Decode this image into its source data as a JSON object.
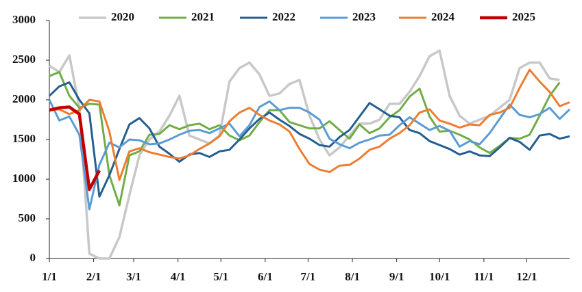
{
  "chart_data": {
    "type": "line",
    "x": [
      0,
      7,
      14,
      21,
      28,
      35,
      42,
      49,
      56,
      63,
      70,
      77,
      84,
      91,
      98,
      105,
      112,
      119,
      126,
      133,
      140,
      147,
      154,
      161,
      168,
      175,
      182,
      189,
      196,
      203,
      210,
      217,
      224,
      231,
      238,
      245,
      252,
      259,
      266,
      273,
      280,
      287,
      294,
      301,
      308,
      315,
      322,
      329,
      336,
      343,
      350,
      357,
      364
    ],
    "xlim": [
      0,
      364
    ],
    "xticks": [
      {
        "value": 0,
        "label": "1/1"
      },
      {
        "value": 31,
        "label": "2/1"
      },
      {
        "value": 59,
        "label": "3/1"
      },
      {
        "value": 90,
        "label": "4/1"
      },
      {
        "value": 120,
        "label": "5/1"
      },
      {
        "value": 151,
        "label": "6/1"
      },
      {
        "value": 181,
        "label": "7/1"
      },
      {
        "value": 212,
        "label": "8/1"
      },
      {
        "value": 243,
        "label": "9/1"
      },
      {
        "value": 273,
        "label": "10/1"
      },
      {
        "value": 304,
        "label": "11/1"
      },
      {
        "value": 334,
        "label": "12/1"
      }
    ],
    "ylim": [
      0,
      3000
    ],
    "yticks": [
      0,
      500,
      1000,
      1500,
      2000,
      2500,
      3000
    ],
    "legend": "top",
    "series": [
      {
        "name": "2020",
        "color": "#c8c8c8",
        "width": 3.5,
        "values": [
          2430,
          2350,
          2560,
          1900,
          60,
          0,
          0,
          270,
          800,
          1300,
          1500,
          1600,
          1800,
          2050,
          1550,
          1500,
          1450,
          1550,
          2230,
          2400,
          2470,
          2320,
          2050,
          2080,
          2200,
          2250,
          1800,
          1500,
          1300,
          1400,
          1550,
          1700,
          1700,
          1750,
          1950,
          1950,
          2100,
          2300,
          2550,
          2620,
          2050,
          1800,
          1700,
          1750,
          1800,
          1900,
          2000,
          2400,
          2470,
          2470,
          2270,
          2250,
          null
        ]
      },
      {
        "name": "2021",
        "color": "#70ad47",
        "width": 3,
        "values": [
          2300,
          2350,
          2050,
          1900,
          1950,
          1940,
          1050,
          670,
          1300,
          1350,
          1560,
          1570,
          1680,
          1630,
          1680,
          1700,
          1630,
          1680,
          1550,
          1490,
          1550,
          1720,
          1870,
          1870,
          1720,
          1680,
          1640,
          1640,
          1730,
          1620,
          1510,
          1690,
          1580,
          1640,
          1780,
          1870,
          2040,
          2140,
          1790,
          1600,
          1610,
          1560,
          1500,
          1400,
          1330,
          1420,
          1520,
          1510,
          1560,
          1800,
          2050,
          2220,
          null
        ]
      },
      {
        "name": "2022",
        "color": "#255e91",
        "width": 3,
        "values": [
          2050,
          2170,
          2220,
          2000,
          1830,
          780,
          1050,
          1380,
          1690,
          1770,
          1640,
          1410,
          1320,
          1220,
          1310,
          1330,
          1280,
          1350,
          1370,
          1500,
          1640,
          1760,
          1840,
          1750,
          1670,
          1570,
          1510,
          1430,
          1410,
          1530,
          1620,
          1790,
          1960,
          1880,
          1800,
          1780,
          1620,
          1580,
          1480,
          1430,
          1380,
          1310,
          1350,
          1300,
          1290,
          1400,
          1520,
          1470,
          1370,
          1550,
          1570,
          1510,
          1540
        ]
      },
      {
        "name": "2023",
        "color": "#5b9bd5",
        "width": 3,
        "values": [
          2000,
          1740,
          1790,
          1560,
          620,
          1180,
          1460,
          1400,
          1500,
          1490,
          1440,
          1450,
          1500,
          1560,
          1610,
          1620,
          1580,
          1640,
          1700,
          1540,
          1680,
          1910,
          1980,
          1870,
          1900,
          1900,
          1840,
          1750,
          1510,
          1440,
          1390,
          1460,
          1500,
          1550,
          1560,
          1680,
          1780,
          1700,
          1620,
          1670,
          1610,
          1410,
          1480,
          1440,
          1580,
          1760,
          1940,
          1810,
          1780,
          1820,
          1900,
          1760,
          1880
        ]
      },
      {
        "name": "2024",
        "color": "#ed7d31",
        "width": 3,
        "values": [
          1870,
          1880,
          1820,
          1870,
          2000,
          1980,
          1600,
          990,
          1350,
          1390,
          1340,
          1310,
          1280,
          1260,
          1300,
          1380,
          1450,
          1540,
          1730,
          1840,
          1900,
          1810,
          1740,
          1690,
          1600,
          1380,
          1190,
          1120,
          1090,
          1170,
          1180,
          1260,
          1370,
          1410,
          1510,
          1580,
          1680,
          1840,
          1880,
          1740,
          1700,
          1650,
          1690,
          1680,
          1810,
          1840,
          1900,
          2150,
          2380,
          2230,
          2100,
          1920,
          1970
        ]
      },
      {
        "name": "2025",
        "color": "#c00000",
        "width": 4.5,
        "values": [
          1870,
          1900,
          1910,
          1820,
          870,
          1110,
          null,
          null,
          null,
          null,
          null,
          null,
          null,
          null,
          null,
          null,
          null,
          null,
          null,
          null,
          null,
          null,
          null,
          null,
          null,
          null,
          null,
          null,
          null,
          null,
          null,
          null,
          null,
          null,
          null,
          null,
          null,
          null,
          null,
          null,
          null,
          null,
          null,
          null,
          null,
          null,
          null,
          null,
          null,
          null,
          null,
          null,
          null
        ]
      }
    ]
  }
}
